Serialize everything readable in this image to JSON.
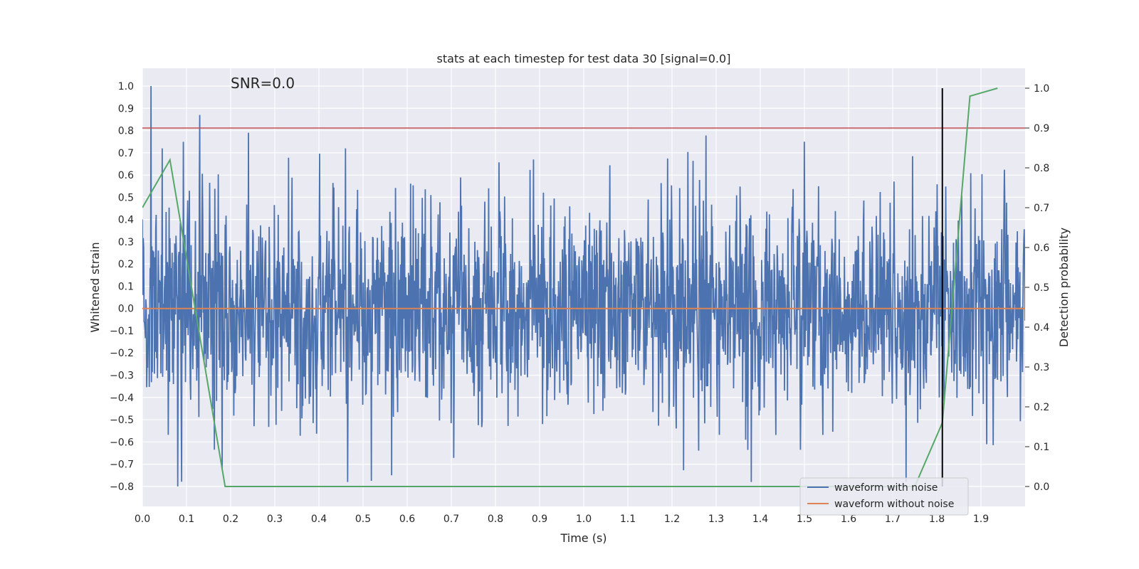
{
  "chart_data": {
    "type": "line",
    "title": "stats at each timestep for test data 30 [signal=0.0]",
    "xlabel": "Time (s)",
    "ylabel": "Whitened strain",
    "y2label": "Detection probability",
    "annotation": "SNR=0.0",
    "xlim": [
      0.0,
      2.0
    ],
    "ylim": [
      -0.89,
      1.08
    ],
    "y2lim": [
      -0.05,
      1.05
    ],
    "x_ticks": [
      "0.0",
      "0.1",
      "0.2",
      "0.3",
      "0.4",
      "0.5",
      "0.6",
      "0.7",
      "0.8",
      "0.9",
      "1.0",
      "1.1",
      "1.2",
      "1.3",
      "1.4",
      "1.5",
      "1.6",
      "1.7",
      "1.8",
      "1.9"
    ],
    "y_ticks": [
      "1.0",
      "0.9",
      "0.8",
      "0.7",
      "0.6",
      "0.5",
      "0.4",
      "0.3",
      "0.2",
      "0.1",
      "0.0",
      "−0.1",
      "−0.2",
      "−0.3",
      "−0.4",
      "−0.5",
      "−0.6",
      "−0.7",
      "−0.8"
    ],
    "y2_ticks": [
      "1.0",
      "0.9",
      "0.8",
      "0.7",
      "0.6",
      "0.5",
      "0.4",
      "0.3",
      "0.2",
      "0.1",
      "0.0"
    ],
    "grid": true,
    "legend_position": "lower-right",
    "series": [
      {
        "name": "waveform with noise",
        "axis": "left",
        "color": "#4c72b0",
        "generated": true,
        "n_points": 2048,
        "std": 0.24,
        "seed": 30,
        "spikes": [
          {
            "x": 0.02,
            "y": 1.0
          },
          {
            "x": 0.045,
            "y": 0.72
          },
          {
            "x": 0.08,
            "y": -0.8
          },
          {
            "x": 0.13,
            "y": 0.87
          },
          {
            "x": 0.24,
            "y": 0.79
          },
          {
            "x": 0.46,
            "y": 0.72
          },
          {
            "x": 0.465,
            "y": -0.78
          },
          {
            "x": 0.565,
            "y": -0.75
          },
          {
            "x": 1.38,
            "y": -0.78
          },
          {
            "x": 1.5,
            "y": 0.75
          },
          {
            "x": 1.73,
            "y": -0.78
          }
        ]
      },
      {
        "name": "waveform without noise",
        "axis": "left",
        "color": "#dd8452",
        "x": [
          0.0,
          2.0
        ],
        "y": [
          0.0,
          0.0
        ]
      },
      {
        "name": "detection probability",
        "axis": "right",
        "color": "#55a868",
        "x": [
          0.0,
          0.0625,
          0.1875,
          0.25,
          1.75,
          1.8125,
          1.875,
          1.9375
        ],
        "y": [
          0.7,
          0.82,
          0.0,
          0.0,
          0.0,
          0.16,
          0.98,
          1.0
        ]
      }
    ],
    "threshold": {
      "axis": "right",
      "value": 0.9,
      "color": "#c44e52"
    },
    "vline": {
      "x": 1.8125,
      "axis": "right",
      "y_range": [
        0.0,
        1.0
      ],
      "color": "#000000"
    },
    "legend": [
      {
        "label": "waveform with noise",
        "color": "#4c72b0"
      },
      {
        "label": "waveform without noise",
        "color": "#dd8452"
      }
    ],
    "colors": {
      "plot_background": "#eaeaf2",
      "grid": "#ffffff"
    }
  }
}
